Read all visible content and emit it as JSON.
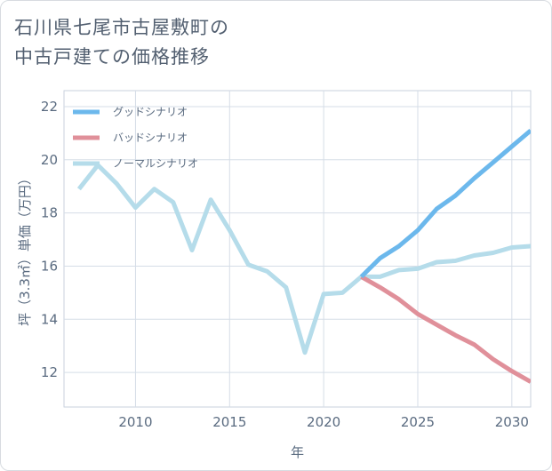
{
  "page": {
    "title_line1": "石川県七尾市古屋敷町の",
    "title_line2": "中古戸建ての価格推移"
  },
  "chart_data": {
    "type": "line",
    "title": "石川県七尾市古屋敷町の中古戸建ての価格推移",
    "xlabel": "年",
    "ylabel": "坪（3.3㎡）単価（万円）",
    "xlim": [
      2006.2,
      2031
    ],
    "ylim": [
      10.7,
      22.6
    ],
    "xticks": [
      2010,
      2015,
      2020,
      2025,
      2030
    ],
    "xtick_labels": [
      "2010",
      "2015",
      "2020",
      "2025",
      "2030"
    ],
    "yticks": [
      12,
      14,
      16,
      18,
      20,
      22
    ],
    "ytick_labels": [
      "12",
      "14",
      "16",
      "18",
      "20",
      "22"
    ],
    "grid": true,
    "legend_position": "top-left",
    "series": [
      {
        "name": "グッドシナリオ",
        "color": "#6cb8ec",
        "x": [
          2022,
          2023,
          2024,
          2025,
          2026,
          2027,
          2028,
          2029,
          2030,
          2031
        ],
        "values": [
          15.6,
          16.3,
          16.75,
          17.35,
          18.15,
          18.65,
          19.3,
          19.9,
          20.5,
          21.1
        ]
      },
      {
        "name": "バッドシナリオ",
        "color": "#e0909a",
        "x": [
          2022,
          2023,
          2024,
          2025,
          2026,
          2027,
          2028,
          2029,
          2030,
          2031
        ],
        "values": [
          15.6,
          15.2,
          14.75,
          14.2,
          13.8,
          13.4,
          13.05,
          12.5,
          12.05,
          11.65
        ]
      },
      {
        "name": "ノーマルシナリオ",
        "color": "#b5dcea",
        "x": [
          2007,
          2008,
          2009,
          2010,
          2011,
          2012,
          2013,
          2014,
          2015,
          2016,
          2017,
          2018,
          2019,
          2020,
          2021,
          2022,
          2023,
          2024,
          2025,
          2026,
          2027,
          2028,
          2029,
          2030,
          2031
        ],
        "values": [
          18.9,
          19.8,
          19.1,
          18.2,
          18.9,
          18.4,
          16.6,
          18.5,
          17.35,
          16.05,
          15.8,
          15.2,
          12.75,
          14.95,
          15.0,
          15.6,
          15.6,
          15.85,
          15.9,
          16.15,
          16.2,
          16.4,
          16.5,
          16.7,
          16.75
        ]
      }
    ]
  }
}
